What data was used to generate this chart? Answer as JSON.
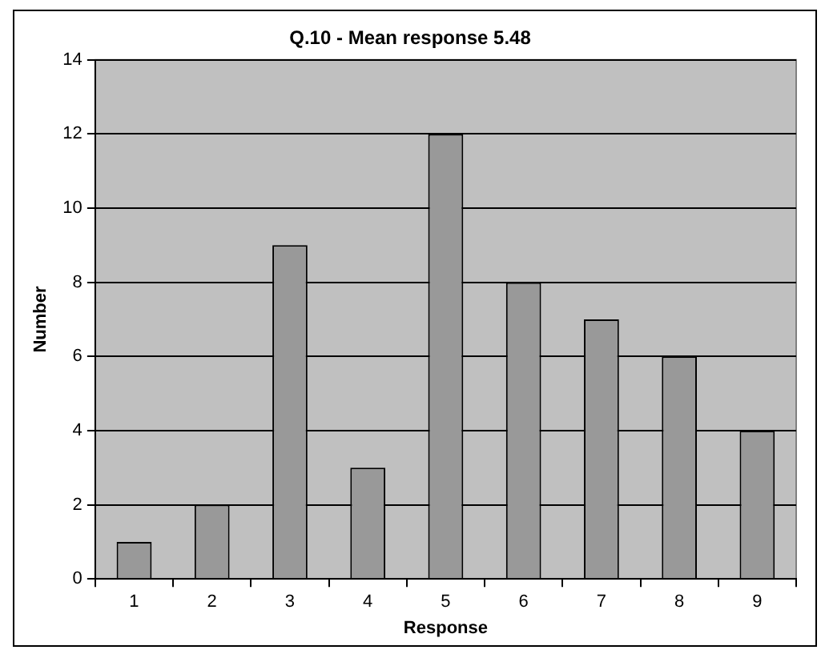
{
  "chart_data": {
    "type": "bar",
    "title": "Q.10 - Mean response 5.48",
    "xlabel": "Response",
    "ylabel": "Number",
    "categories": [
      "1",
      "2",
      "3",
      "4",
      "5",
      "6",
      "7",
      "8",
      "9"
    ],
    "values": [
      1,
      2,
      9,
      3,
      12,
      8,
      7,
      6,
      4
    ],
    "color": "#999999",
    "ylim": [
      0,
      14
    ],
    "yticks": [
      0,
      2,
      4,
      6,
      8,
      10,
      12,
      14
    ],
    "grid": "y",
    "legend": false
  }
}
